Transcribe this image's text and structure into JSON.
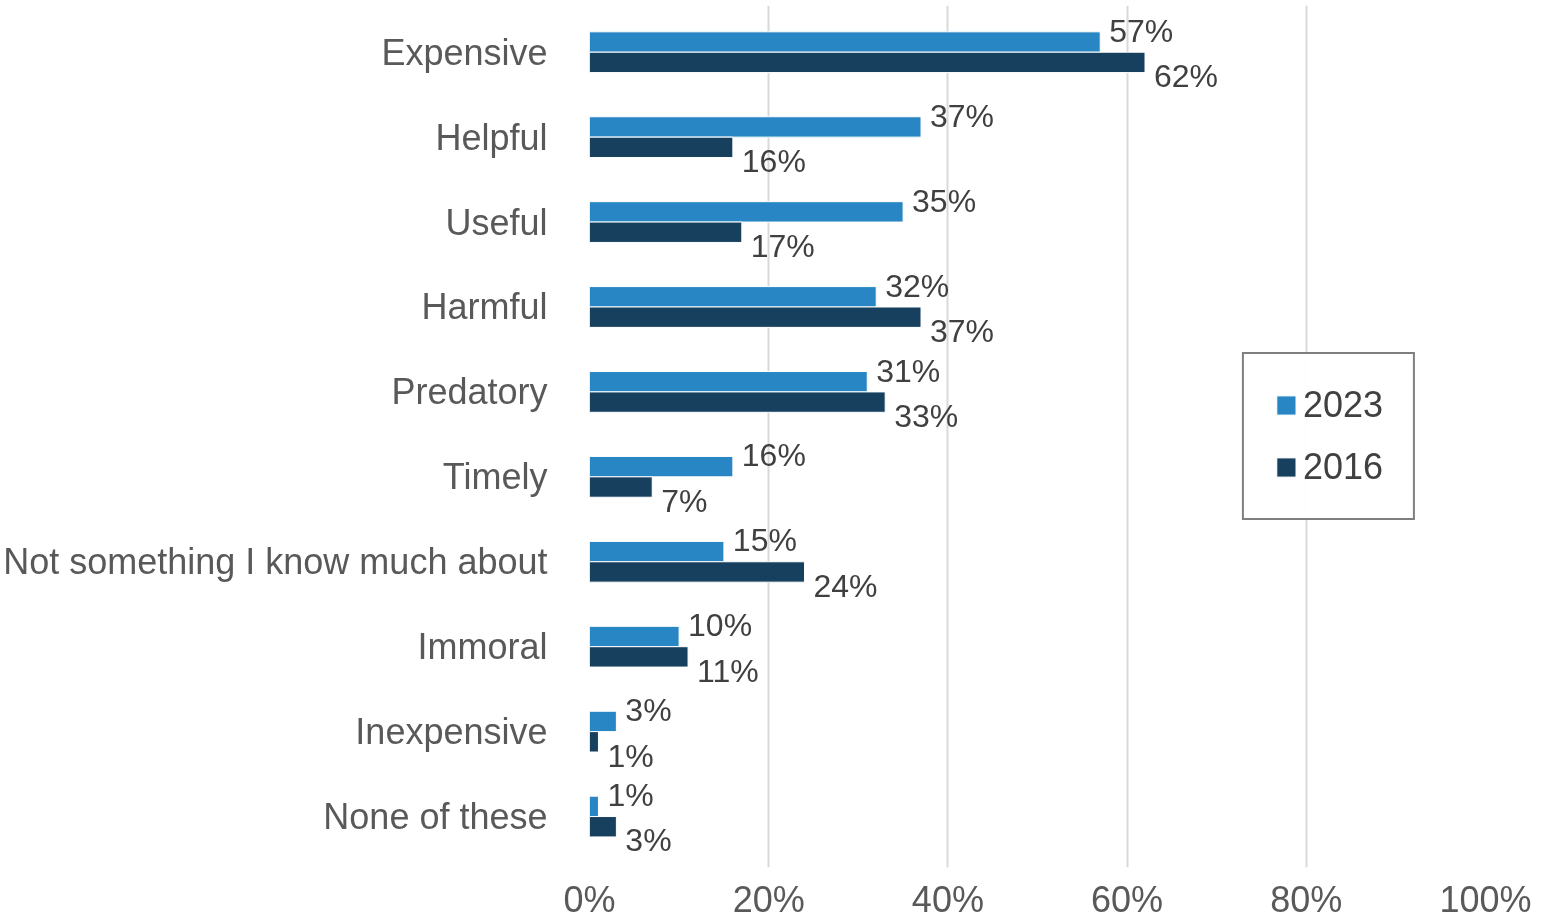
{
  "chart_data": {
    "type": "bar",
    "orientation": "horizontal",
    "categories": [
      "Expensive",
      "Helpful",
      "Useful",
      "Harmful",
      "Predatory",
      "Timely",
      "Not something I know much about",
      "Immoral",
      "Inexpensive",
      "None of these"
    ],
    "series": [
      {
        "name": "2023",
        "color": "#2986c4",
        "values": [
          57,
          37,
          35,
          32,
          31,
          16,
          15,
          10,
          3,
          1
        ],
        "value_labels": [
          "57%",
          "37%",
          "35%",
          "32%",
          "31%",
          "16%",
          "15%",
          "10%",
          "3%",
          "1%"
        ]
      },
      {
        "name": "2016",
        "color": "#17405f",
        "values": [
          62,
          16,
          17,
          37,
          33,
          7,
          24,
          11,
          1,
          3
        ],
        "value_labels": [
          "62%",
          "16%",
          "17%",
          "37%",
          "33%",
          "7%",
          "24%",
          "11%",
          "1%",
          "3%"
        ]
      }
    ],
    "xlim": [
      0,
      100
    ],
    "xticks": [
      {
        "value": 0,
        "label": "0%"
      },
      {
        "value": 20,
        "label": "20%"
      },
      {
        "value": 40,
        "label": "40%"
      },
      {
        "value": 60,
        "label": "60%"
      },
      {
        "value": 80,
        "label": "80%"
      },
      {
        "value": 100,
        "label": "100%"
      }
    ],
    "grid": "x",
    "legend": "right"
  }
}
